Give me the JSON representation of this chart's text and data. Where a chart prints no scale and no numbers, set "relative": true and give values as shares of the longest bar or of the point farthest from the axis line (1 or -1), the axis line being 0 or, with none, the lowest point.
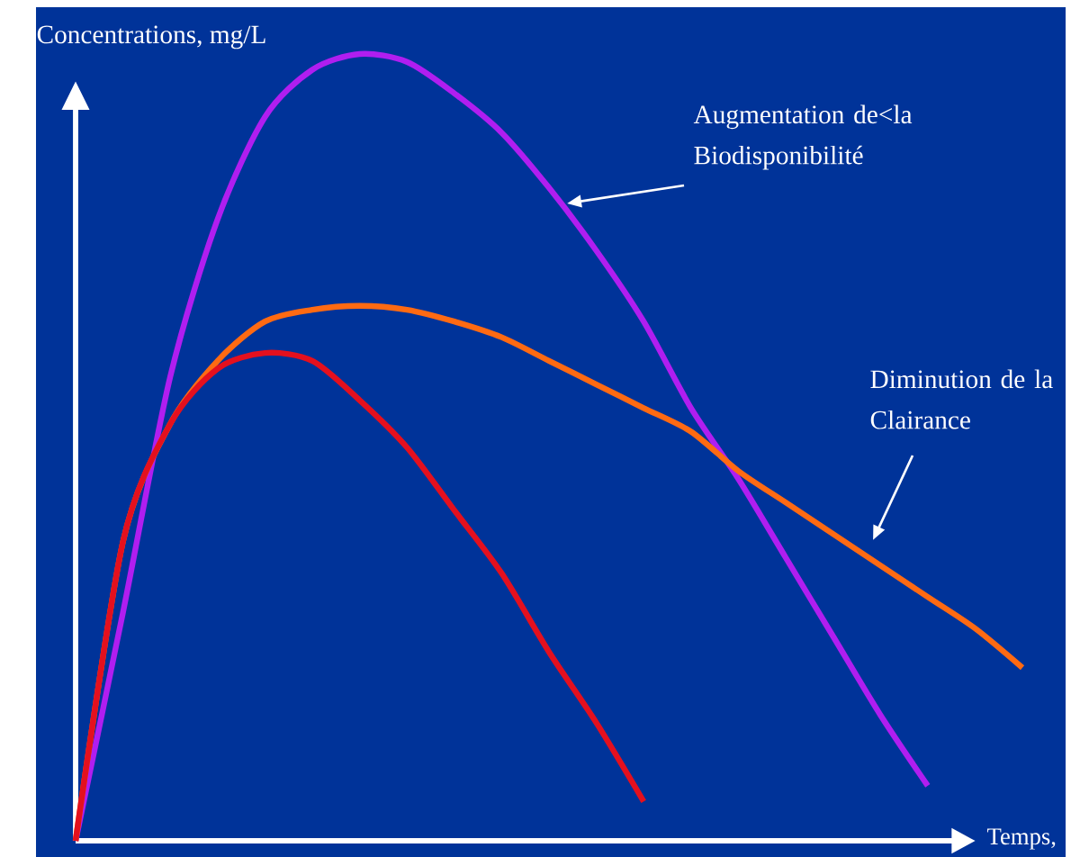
{
  "chart_data": {
    "type": "line",
    "relative": true,
    "xlabel": "Temps,",
    "ylabel": "Concentrations, mg/L",
    "categories": [
      null,
      null,
      null,
      null,
      null,
      null,
      null,
      null,
      null,
      null,
      null,
      null,
      null,
      null,
      null,
      null,
      null,
      null,
      null,
      null,
      null
    ],
    "series": [
      {
        "color": "#b01ef0",
        "values": [
          0,
          0.29,
          0.59,
          0.79,
          0.92,
          0.98,
          1.0,
          0.99,
          0.95,
          0.9,
          0.83,
          0.75,
          0.66,
          0.55,
          0.46,
          0.36,
          0.26,
          0.16,
          0.07,
          null,
          null
        ]
      },
      {
        "color": "#ff6a12",
        "values": [
          0,
          0.38,
          0.53,
          0.61,
          0.66,
          0.675,
          0.68,
          0.675,
          0.66,
          0.64,
          0.61,
          0.58,
          0.55,
          0.52,
          0.47,
          0.43,
          0.39,
          0.35,
          0.31,
          0.27,
          0.22
        ]
      },
      {
        "color": "#e4101e",
        "values": [
          0,
          0.38,
          0.53,
          0.6,
          0.62,
          0.61,
          0.56,
          0.5,
          0.42,
          0.34,
          0.24,
          0.15,
          0.05,
          null,
          null,
          null,
          null,
          null,
          null,
          null,
          null
        ]
      }
    ],
    "annotations": [
      "Augmentation de<la Biodisponibilité",
      "Diminution de la Clairance"
    ]
  }
}
